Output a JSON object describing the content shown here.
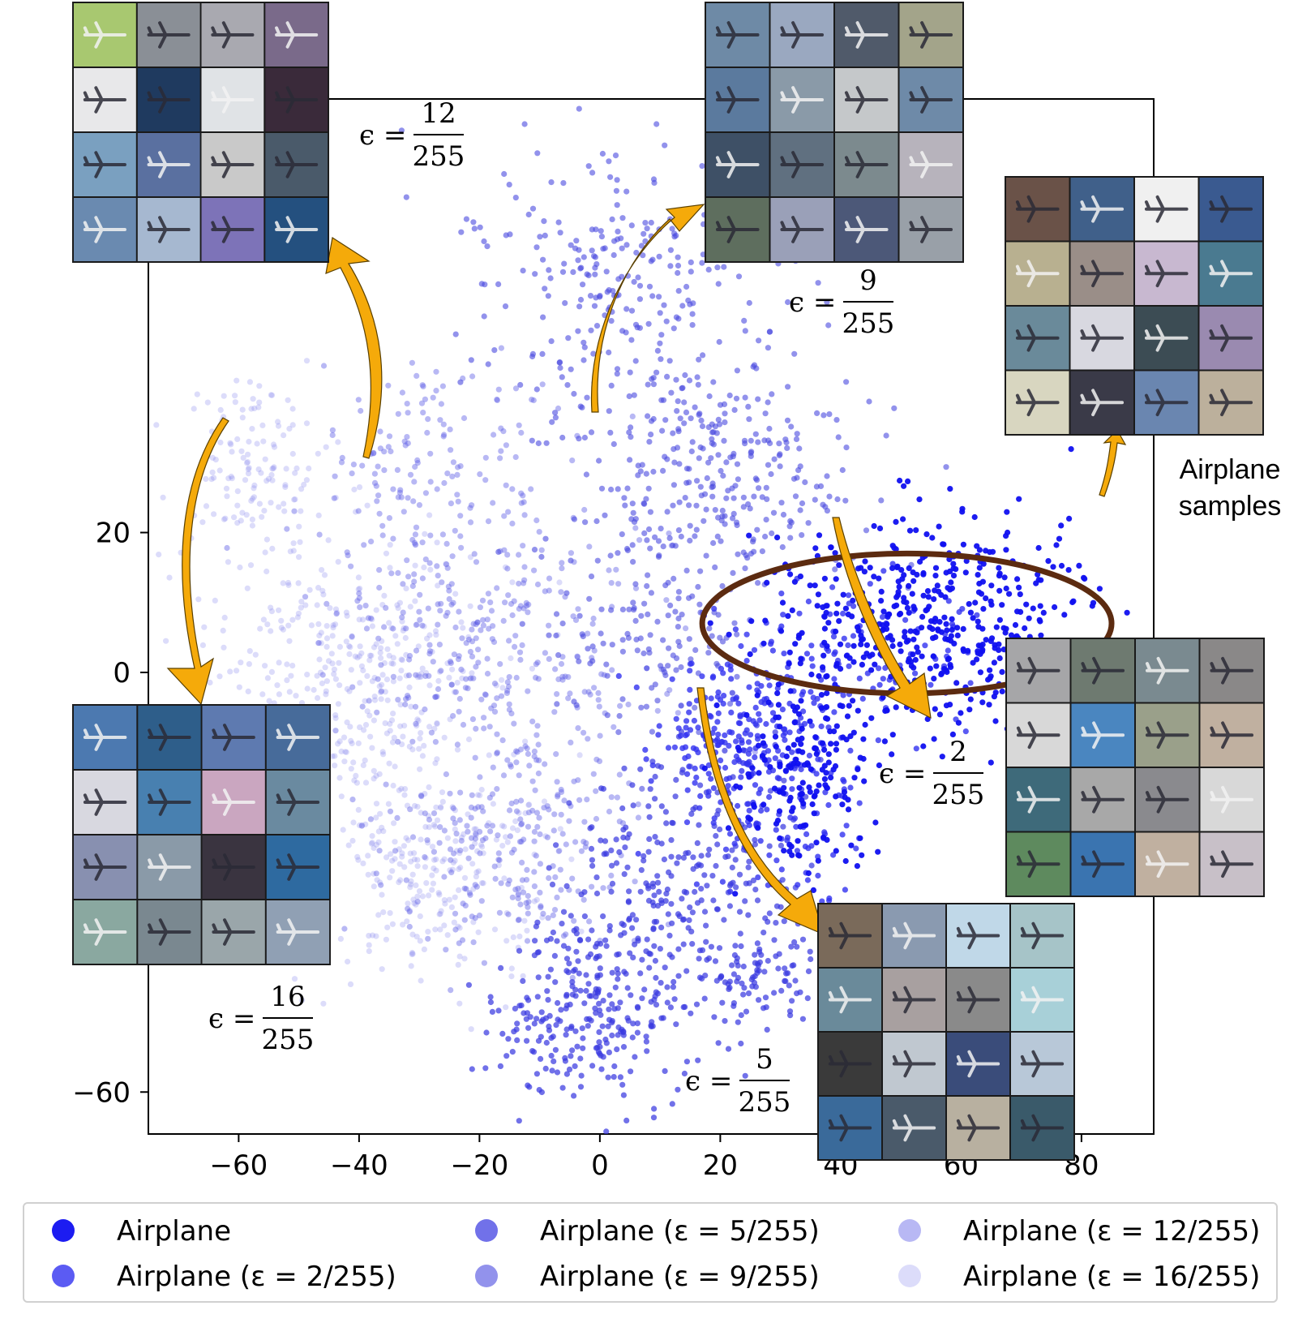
{
  "chart_data": {
    "type": "scatter",
    "title": "",
    "xlabel": "",
    "ylabel": "",
    "xlim": [
      -75,
      92
    ],
    "ylim": [
      -66,
      82
    ],
    "xticks": [
      -60,
      -40,
      -20,
      0,
      20,
      40,
      60,
      80
    ],
    "yticks": [
      -60,
      0,
      20
    ],
    "xtick_labels": [
      "−60",
      "−40",
      "−20",
      "0",
      "20",
      "40",
      "60",
      "80"
    ],
    "ytick_labels": [
      "−60",
      "0",
      "20"
    ],
    "grid": false,
    "legend_position": "bottom",
    "series": [
      {
        "name": "Airplane",
        "eps": "",
        "color": "#1010f0",
        "alpha": 0.95,
        "count": 650,
        "clusters": [
          {
            "cx": 55,
            "cy": 7,
            "sx": 14,
            "sy": 8,
            "w": 3
          },
          {
            "cx": 34,
            "cy": -15,
            "sx": 6,
            "sy": 6,
            "w": 1
          }
        ]
      },
      {
        "name": "Airplane (ε = 2/255)",
        "eps": "2/255",
        "color": "#3232f0",
        "alpha": 0.8,
        "count": 450,
        "clusters": [
          {
            "cx": 28,
            "cy": -15,
            "sx": 8,
            "sy": 8,
            "w": 2
          },
          {
            "cx": 20,
            "cy": -8,
            "sx": 6,
            "sy": 5,
            "w": 1
          },
          {
            "cx": 45,
            "cy": 2,
            "sx": 10,
            "sy": 6,
            "w": 1
          }
        ]
      },
      {
        "name": "Airplane (ε = 5/255)",
        "eps": "5/255",
        "color": "#3a3ae0",
        "alpha": 0.72,
        "count": 650,
        "clusters": [
          {
            "cx": 8,
            "cy": -35,
            "sx": 8,
            "sy": 9,
            "w": 2
          },
          {
            "cx": -3,
            "cy": -50,
            "sx": 8,
            "sy": 6,
            "w": 2
          },
          {
            "cx": 20,
            "cy": -25,
            "sx": 8,
            "sy": 10,
            "w": 1
          },
          {
            "cx": 28,
            "cy": -42,
            "sx": 6,
            "sy": 4,
            "w": 1
          }
        ]
      },
      {
        "name": "Airplane (ε = 9/255)",
        "eps": "9/255",
        "color": "#4a4ae0",
        "alpha": 0.6,
        "count": 700,
        "clusters": [
          {
            "cx": 5,
            "cy": 55,
            "sx": 14,
            "sy": 10,
            "w": 2
          },
          {
            "cx": 20,
            "cy": 28,
            "sx": 12,
            "sy": 8,
            "w": 2
          },
          {
            "cx": 10,
            "cy": 5,
            "sx": 10,
            "sy": 7,
            "w": 1
          }
        ]
      },
      {
        "name": "Airplane (ε = 12/255)",
        "eps": "12/255",
        "color": "#6262e6",
        "alpha": 0.45,
        "count": 700,
        "clusters": [
          {
            "cx": -30,
            "cy": 30,
            "sx": 9,
            "sy": 8,
            "w": 1
          },
          {
            "cx": -18,
            "cy": 5,
            "sx": 14,
            "sy": 12,
            "w": 3
          },
          {
            "cx": -15,
            "cy": -25,
            "sx": 10,
            "sy": 9,
            "w": 2
          }
        ]
      },
      {
        "name": "Airplane (ε = 16/255)",
        "eps": "16/255",
        "color": "#8a8aee",
        "alpha": 0.3,
        "count": 750,
        "clusters": [
          {
            "cx": -58,
            "cy": 30,
            "sx": 6,
            "sy": 6,
            "w": 1
          },
          {
            "cx": -42,
            "cy": 0,
            "sx": 12,
            "sy": 10,
            "w": 3
          },
          {
            "cx": -28,
            "cy": -28,
            "sx": 10,
            "sy": 8,
            "w": 2
          }
        ]
      }
    ],
    "highlight": {
      "shape": "ellipse",
      "color": "#5c2b10",
      "cx": 51,
      "cy": 7,
      "rx": 34,
      "ry": 29
    },
    "annotations": [
      {
        "label_num": "12",
        "label_den": "255",
        "panel": "tl"
      },
      {
        "label_num": "9",
        "label_den": "255",
        "panel": "tm"
      },
      {
        "label_num": "16",
        "label_den": "255",
        "panel": "bl"
      },
      {
        "label_num": "5",
        "label_den": "255",
        "panel": "bm"
      },
      {
        "label_num": "2",
        "label_den": "255",
        "panel": "mr"
      }
    ],
    "samples_label": "Airplane samples",
    "samples_label_lines": [
      "Airplane",
      "samples"
    ],
    "eps_symbol": "ϵ ="
  },
  "image_grid_colors": [
    [
      "#a8c870",
      "#8a8f96",
      "#a9a9b0",
      "#7a6a8a",
      "#e8e8ea",
      "#1f3a5f",
      "#e0e3e6",
      "#3a2a3a",
      "#7aa0c0",
      "#5a70a0",
      "#c9c9c9",
      "#4a5a6a",
      "#6a8ab0",
      "#a6b8d0",
      "#7d73b8",
      "#24507f"
    ],
    [
      "#6e8aa6",
      "#9aa8c0",
      "#505a6a",
      "#a3a48a",
      "#5b7a9e",
      "#8a9aa8",
      "#c5c8ca",
      "#6e8aa8",
      "#3e5066",
      "#607080",
      "#7c8a8e",
      "#b7b3bc",
      "#5e6e5e",
      "#9aa0b8",
      "#4c5878",
      "#99a0a8"
    ],
    [
      "#6a5248",
      "#40608a",
      "#f0f0f0",
      "#3a5a90",
      "#b8b090",
      "#9a8e88",
      "#c8b8d0",
      "#4a7a90",
      "#6a8a9a",
      "#d8d8e0",
      "#3c4c54",
      "#9a8ab0",
      "#d8d6c0",
      "#3a3a48",
      "#6a86b0",
      "#bcb09c"
    ],
    [
      "#4c79b0",
      "#2e5e8a",
      "#5e7ab0",
      "#476b9a",
      "#d8d8e0",
      "#4880b0",
      "#caa6c0",
      "#6a8aa0",
      "#8890b0",
      "#8a9aa8",
      "#3a3440",
      "#2e6aa0",
      "#8aa8a0",
      "#7a8890",
      "#9aa6aa",
      "#90a0b4"
    ],
    [
      "#a6a6a8",
      "#6e7a70",
      "#7a8a90",
      "#8a8888",
      "#d8d8d8",
      "#4a86c0",
      "#9aa08a",
      "#c0b0a0",
      "#3e6a7a",
      "#a8a8a8",
      "#8a8a8e",
      "#d8d8d8",
      "#5e8a5e",
      "#3a74b0",
      "#c0b0a0",
      "#c8c0c8"
    ],
    [
      "#7a6a5a",
      "#8a9ab0",
      "#c0d8e8",
      "#a6c4c8",
      "#6a8a9a",
      "#a8a0a0",
      "#8a8a8a",
      "#a8d0d8",
      "#3a3a3a",
      "#c0c8d0",
      "#3a4c7a",
      "#b8c8d8",
      "#3a6a9a",
      "#4a5a6a",
      "#b8b0a0",
      "#3a5a6a"
    ]
  ],
  "legend": {
    "items": [
      {
        "label": "Airplane",
        "color": "#1010f0",
        "alpha": 0.95
      },
      {
        "label": "Airplane (ε = 2/255)",
        "color": "#3232f0",
        "alpha": 0.8
      },
      {
        "label": "Airplane (ε = 5/255)",
        "color": "#3a3ae0",
        "alpha": 0.72
      },
      {
        "label": "Airplane (ε = 9/255)",
        "color": "#4a4ae0",
        "alpha": 0.6
      },
      {
        "label": "Airplane (ε = 12/255)",
        "color": "#6262e6",
        "alpha": 0.45
      },
      {
        "label": "Airplane (ε = 16/255)",
        "color": "#8a8aee",
        "alpha": 0.3
      }
    ]
  },
  "colors": {
    "arrow": "#f5aa0a",
    "arrow_edge": "#5a4000",
    "axes": "#000000",
    "ellipse": "#5c2b10"
  }
}
